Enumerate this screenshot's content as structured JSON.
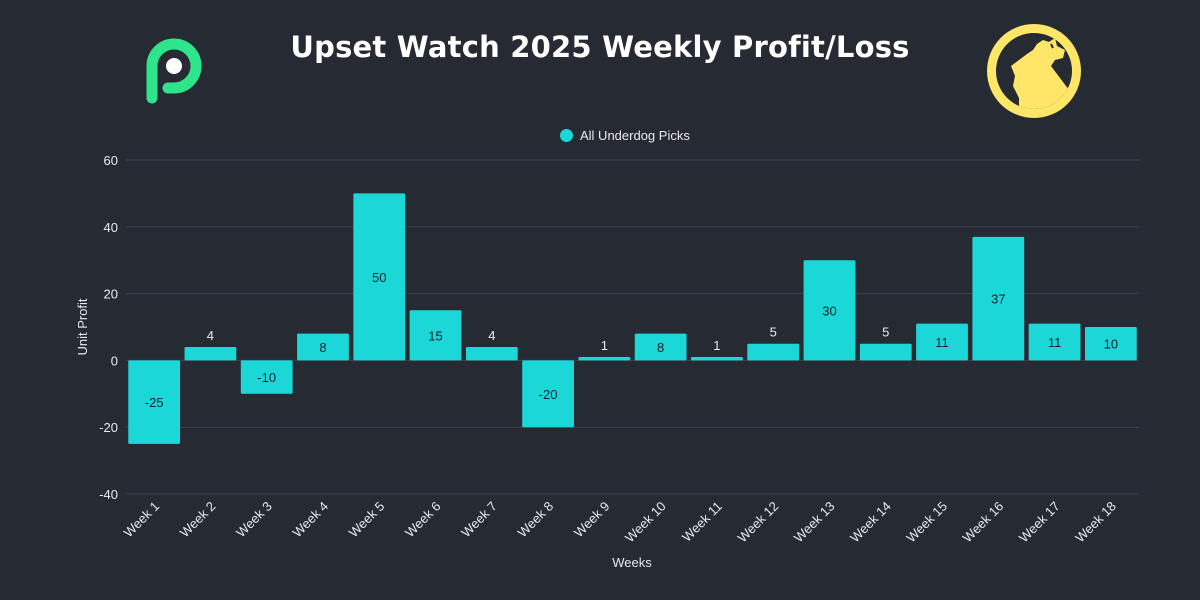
{
  "colors": {
    "background": "#252a33",
    "bar": "#1cd7d8",
    "grid": "#3e4450",
    "text": "#e8ebef",
    "brand_green": "#2ee58c",
    "brand_yellow": "#fde668"
  },
  "logos": {
    "left": "brand-p-icon",
    "right": "wolf-howl-icon"
  },
  "chart_data": {
    "type": "bar",
    "title": "Upset Watch 2025 Weekly Profit/Loss",
    "xlabel": "Weeks",
    "ylabel": "Unit Profit",
    "ylim": [
      -40,
      60
    ],
    "yticks": [
      60,
      40,
      20,
      0,
      -20,
      -40
    ],
    "grid": true,
    "legend_position": "top-center",
    "categories": [
      "Week 1",
      "Week 2",
      "Week 3",
      "Week 4",
      "Week 5",
      "Week 6",
      "Week 7",
      "Week 8",
      "Week 9",
      "Week 10",
      "Week 11",
      "Week 12",
      "Week 13",
      "Week 14",
      "Week 15",
      "Week 16",
      "Week 17",
      "Week 18"
    ],
    "series": [
      {
        "name": "All Underdog Picks",
        "values": [
          -25,
          4,
          -10,
          8,
          50,
          15,
          4,
          -20,
          1,
          8,
          1,
          5,
          30,
          5,
          11,
          37,
          11,
          10
        ],
        "labels": [
          "-25",
          "4",
          "-10",
          "8",
          "50",
          "15",
          "4",
          "-20",
          "1",
          "8",
          "1",
          "5",
          "30",
          "5",
          "11",
          "37",
          "11",
          "10"
        ]
      }
    ]
  }
}
